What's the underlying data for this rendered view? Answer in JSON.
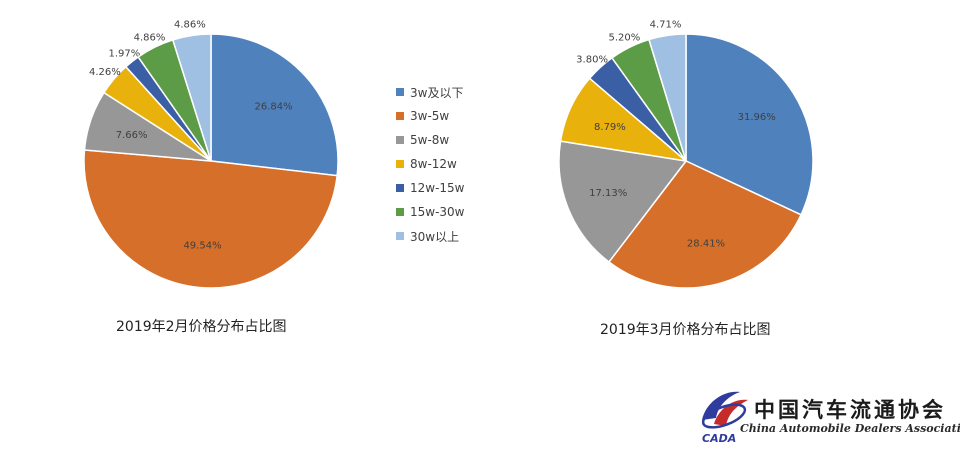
{
  "legend": [
    {
      "label": "3w及以下",
      "color": "#4f81bd"
    },
    {
      "label": "3w-5w",
      "color": "#d66f2a"
    },
    {
      "label": "5w-8w",
      "color": "#979797"
    },
    {
      "label": "8w-12w",
      "color": "#e8b10c"
    },
    {
      "label": "12w-15w",
      "color": "#3a5fa5"
    },
    {
      "label": "15w-30w",
      "color": "#5d9c46"
    },
    {
      "label": "30w以上",
      "color": "#9fbfe3"
    }
  ],
  "chart_data": [
    {
      "type": "pie",
      "title": "2019年2月价格分布占比图",
      "categories": [
        "3w及以下",
        "3w-5w",
        "5w-8w",
        "8w-12w",
        "12w-15w",
        "15w-30w",
        "30w以上"
      ],
      "values": [
        26.84,
        49.54,
        7.66,
        4.26,
        1.97,
        4.86,
        4.86
      ],
      "labels": [
        "26.84%",
        "49.54%",
        "7.66%",
        "4.26%",
        "1.97%",
        "4.86%",
        "4.86%"
      ]
    },
    {
      "type": "pie",
      "title": "2019年3月价格分布占比图",
      "categories": [
        "3w及以下",
        "3w-5w",
        "5w-8w",
        "8w-12w",
        "12w-15w",
        "15w-30w",
        "30w以上"
      ],
      "values": [
        31.96,
        28.41,
        17.13,
        8.79,
        3.8,
        5.2,
        4.71
      ],
      "labels": [
        "31.96%",
        "28.41%",
        "17.13%",
        "8.79%",
        "3.80%",
        "5.20%",
        "4.71%"
      ]
    }
  ],
  "logo": {
    "cn": "中国汽车流通协会",
    "en": "China Automobile Dealers Association",
    "badge": "CADA"
  }
}
